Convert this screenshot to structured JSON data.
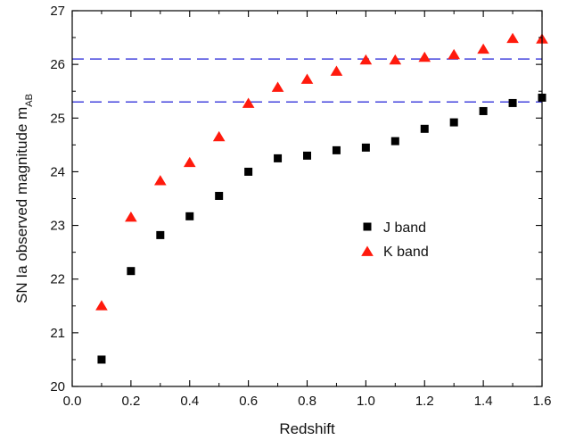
{
  "chart_data": {
    "type": "scatter",
    "xlabel": "Redshift",
    "ylabel": "SN Ia observed magnitude m",
    "ylabel_sub": "AB",
    "xlim": [
      0.0,
      1.6
    ],
    "ylim": [
      20,
      27
    ],
    "xticks": [
      0.0,
      0.2,
      0.4,
      0.6,
      0.8,
      1.0,
      1.2,
      1.4,
      1.6
    ],
    "xtick_labels": [
      "0.0",
      "0.2",
      "0.4",
      "0.6",
      "0.8",
      "1.0",
      "1.2",
      "1.4",
      "1.6"
    ],
    "yticks": [
      20,
      21,
      22,
      23,
      24,
      25,
      26,
      27
    ],
    "ytick_labels": [
      "20",
      "21",
      "22",
      "23",
      "24",
      "25",
      "26",
      "27"
    ],
    "grid": false,
    "legend_position": "center-right",
    "series": [
      {
        "name": "J band",
        "marker": "square",
        "color": "#000000",
        "x": [
          0.1,
          0.2,
          0.3,
          0.4,
          0.5,
          0.6,
          0.7,
          0.8,
          0.9,
          1.0,
          1.1,
          1.2,
          1.3,
          1.4,
          1.5,
          1.6
        ],
        "y": [
          20.5,
          22.15,
          22.82,
          23.17,
          23.55,
          24.0,
          24.25,
          24.3,
          24.4,
          24.45,
          24.57,
          24.8,
          24.92,
          25.13,
          25.28,
          25.38
        ]
      },
      {
        "name": "K band",
        "marker": "triangle",
        "color": "#ff1a0d",
        "x": [
          0.1,
          0.2,
          0.3,
          0.4,
          0.5,
          0.6,
          0.7,
          0.8,
          0.9,
          1.0,
          1.1,
          1.2,
          1.3,
          1.4,
          1.5,
          1.6
        ],
        "y": [
          21.5,
          23.15,
          23.83,
          24.17,
          24.65,
          25.27,
          25.57,
          25.72,
          25.87,
          26.08,
          26.08,
          26.13,
          26.18,
          26.28,
          26.48,
          26.47
        ]
      }
    ],
    "reference_lines": [
      {
        "y": 26.1,
        "style": "dashed",
        "color": "#4444dd"
      },
      {
        "y": 25.3,
        "style": "dashed",
        "color": "#4444dd"
      }
    ]
  }
}
